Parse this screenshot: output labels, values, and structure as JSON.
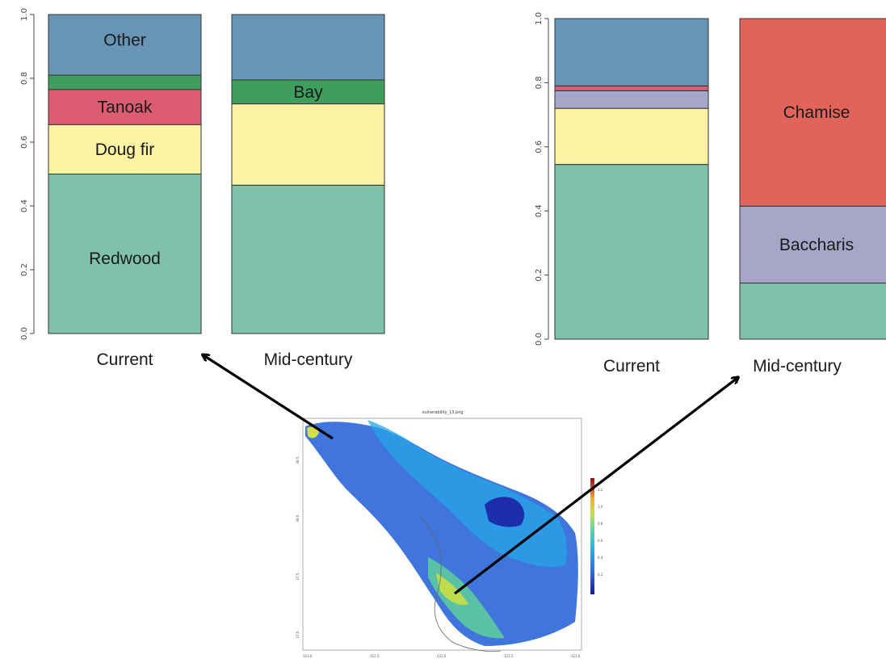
{
  "chart_data": [
    {
      "type": "bar",
      "stacked": true,
      "categories": [
        "Current",
        "Mid-century"
      ],
      "ylim": [
        0,
        1
      ],
      "yticks": [
        "0.0",
        "0.2",
        "0.4",
        "0.6",
        "0.8",
        "1.0"
      ],
      "series": [
        {
          "name": "Redwood",
          "color": "#7ec2ab",
          "values": [
            0.5,
            0.465
          ]
        },
        {
          "name": "Doug fir",
          "color": "#faf3a3",
          "values": [
            0.155,
            0.255
          ]
        },
        {
          "name": "Tanoak",
          "color": "#dc5d72",
          "values": [
            0.11,
            0.0
          ]
        },
        {
          "name": "Bay",
          "color": "#3d9e5e",
          "values": [
            0.045,
            0.075
          ]
        },
        {
          "name": "Other",
          "color": "#6895b5",
          "values": [
            0.19,
            0.205
          ]
        }
      ],
      "segment_labels": [
        {
          "text": "Redwood",
          "series": 0,
          "category": 0
        },
        {
          "text": "Doug fir",
          "series": 1,
          "category": 0
        },
        {
          "text": "Tanoak",
          "series": 2,
          "category": 0
        },
        {
          "text": "Other",
          "series": 4,
          "category": 0
        },
        {
          "text": "Bay",
          "series": 3,
          "category": 1
        }
      ]
    },
    {
      "type": "bar",
      "stacked": true,
      "categories": [
        "Current",
        "Mid-century"
      ],
      "ylim": [
        0,
        1
      ],
      "yticks": [
        "0.0",
        "0.2",
        "0.4",
        "0.6",
        "0.8",
        "1.0"
      ],
      "series": [
        {
          "color": "#7ec2ab",
          "values": [
            0.545,
            0.175
          ]
        },
        {
          "color": "#faf3a3",
          "values": [
            0.175,
            0.0
          ]
        },
        {
          "name": "Baccharis",
          "color": "#a6a6c8",
          "values": [
            0.055,
            0.24
          ]
        },
        {
          "color": "#dc5d72",
          "values": [
            0.015,
            0.0
          ]
        },
        {
          "name": "Chamise",
          "color": "#e0645a",
          "values": [
            0.0,
            0.585
          ]
        },
        {
          "color": "#6895b5",
          "values": [
            0.21,
            0.0
          ]
        }
      ],
      "segment_labels": [
        {
          "text": "Baccharis",
          "series": 2,
          "category": 1
        },
        {
          "text": "Chamise",
          "series": 4,
          "category": 1
        }
      ]
    }
  ],
  "map": {
    "title": "vulnerability_13.png",
    "x_ticks": [
      "-123.0",
      "-122.5",
      "-122.0",
      "-121.5",
      "-121.0"
    ],
    "y_ticks": [
      "38.5",
      "38.0",
      "37.5",
      "37.0"
    ],
    "legend_ticks": [
      "1.2",
      "1.0",
      "0.8",
      "0.6",
      "0.4",
      "0.2"
    ],
    "colorbar": [
      "#1a1a9e",
      "#2f6fe0",
      "#22b5e6",
      "#5ad6a6",
      "#c9e04a",
      "#f2b12e",
      "#d9442a",
      "#8e1010"
    ]
  }
}
